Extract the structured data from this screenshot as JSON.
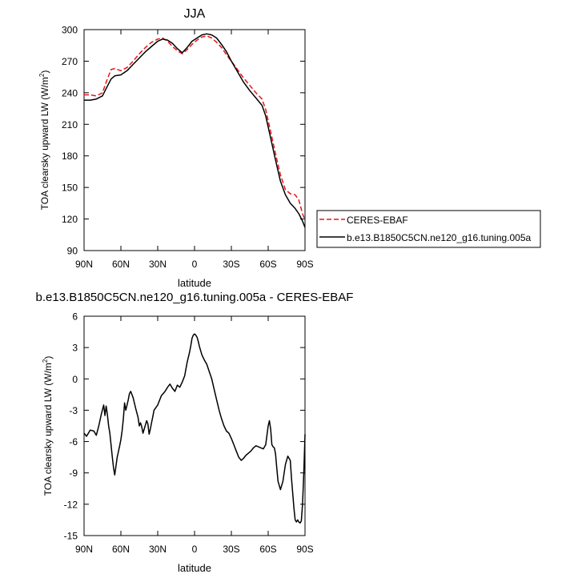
{
  "chart_data": [
    {
      "type": "line",
      "title": "JJA",
      "xlabel": "latitude",
      "ylabel": "TOA clearsky upward LW (W/m",
      "ylabel_superscript": "2",
      "ylabel_tail": ")",
      "xlim": [
        90,
        -90
      ],
      "ylim": [
        90,
        300
      ],
      "x_ticks": [
        90,
        60,
        30,
        0,
        -30,
        -60,
        -90
      ],
      "x_tick_labels": [
        "90N",
        "60N",
        "30N",
        "0",
        "30S",
        "60S",
        "90S"
      ],
      "y_ticks": [
        90,
        120,
        150,
        180,
        210,
        240,
        270,
        300
      ],
      "y_tick_labels": [
        "90",
        "120",
        "150",
        "180",
        "210",
        "240",
        "270",
        "300"
      ],
      "legend": "right, outside plot",
      "series": [
        {
          "name": "CERES-EBAF",
          "color": "#e8141b",
          "dash": "dashed",
          "x": [
            90,
            85,
            80,
            75,
            72,
            68,
            65,
            60,
            55,
            50,
            45,
            40,
            35,
            30,
            26,
            22,
            18,
            14,
            10,
            6,
            2,
            -2,
            -6,
            -10,
            -14,
            -18,
            -22,
            -26,
            -30,
            -35,
            -40,
            -45,
            -50,
            -55,
            -58,
            -62,
            -66,
            -70,
            -74,
            -78,
            -82,
            -85,
            -88,
            -90
          ],
          "y": [
            238,
            238,
            237,
            240,
            250,
            262,
            263,
            261,
            264,
            270,
            277,
            283,
            288,
            291,
            292,
            289,
            284,
            280,
            277,
            281,
            286,
            290,
            293,
            294,
            292,
            288,
            283,
            276,
            270,
            262,
            254,
            247,
            240,
            234,
            224,
            203,
            182,
            162,
            148,
            144,
            143,
            138,
            125,
            119
          ]
        },
        {
          "name": "b.e13.B1850C5CN.ne120_g16.tuning.005a",
          "color": "#000000",
          "dash": "solid",
          "x": [
            90,
            85,
            80,
            75,
            72,
            68,
            65,
            60,
            55,
            50,
            45,
            40,
            35,
            30,
            26,
            22,
            18,
            14,
            10,
            6,
            2,
            -2,
            -6,
            -10,
            -14,
            -18,
            -22,
            -26,
            -30,
            -35,
            -40,
            -45,
            -50,
            -55,
            -58,
            -62,
            -66,
            -70,
            -74,
            -78,
            -82,
            -85,
            -88,
            -90
          ],
          "y": [
            233,
            233,
            234,
            237,
            244,
            253,
            256,
            257,
            261,
            267,
            273,
            279,
            284,
            289,
            291,
            290,
            287,
            282,
            278,
            283,
            289,
            292,
            295,
            296,
            295,
            292,
            286,
            279,
            270,
            260,
            250,
            242,
            235,
            228,
            218,
            197,
            176,
            156,
            143,
            135,
            130,
            125,
            118,
            112
          ]
        }
      ]
    },
    {
      "type": "line",
      "title": "b.e13.B1850C5CN.ne120_g16.tuning.005a - CERES-EBAF",
      "xlabel": "latitude",
      "ylabel": "TOA clearsky upward LW (W/m",
      "ylabel_superscript": "2",
      "ylabel_tail": ")",
      "xlim": [
        90,
        -90
      ],
      "ylim": [
        -15,
        6
      ],
      "x_ticks": [
        90,
        60,
        30,
        0,
        -30,
        -60,
        -90
      ],
      "x_tick_labels": [
        "90N",
        "60N",
        "30N",
        "0",
        "30S",
        "60S",
        "90S"
      ],
      "y_ticks": [
        -15,
        -12,
        -9,
        -6,
        -3,
        0,
        3,
        6
      ],
      "y_tick_labels": [
        "-15",
        "-12",
        "-9",
        "-6",
        "-3",
        "0",
        "3",
        "6"
      ],
      "series": [
        {
          "color": "#000000",
          "dash": "solid",
          "x": [
            90,
            88,
            85,
            82,
            80,
            78,
            76,
            74,
            73,
            72,
            71,
            70,
            69,
            68,
            67,
            66,
            65,
            63,
            61,
            60,
            59,
            58,
            57,
            56,
            55,
            54,
            53,
            52,
            50,
            48,
            46,
            45,
            44,
            43,
            42,
            40,
            39,
            38,
            37,
            36,
            35,
            34,
            33,
            30,
            27,
            24,
            22,
            20,
            18,
            16,
            14,
            12,
            10,
            8,
            6,
            4,
            3,
            2,
            1,
            0,
            -1,
            -2,
            -3,
            -4,
            -6,
            -8,
            -10,
            -12,
            -14,
            -16,
            -18,
            -20,
            -22,
            -24,
            -26,
            -28,
            -30,
            -32,
            -34,
            -36,
            -38,
            -40,
            -42,
            -44,
            -46,
            -48,
            -50,
            -52,
            -54,
            -56,
            -58,
            -60,
            -61,
            -62,
            -63,
            -64,
            -65,
            -66,
            -67,
            -68,
            -70,
            -72,
            -74,
            -76,
            -78,
            -79,
            -80,
            -81,
            -82,
            -83,
            -84,
            -85,
            -86,
            -87,
            -88,
            -89,
            -90
          ],
          "y": [
            -5.2,
            -5.5,
            -4.9,
            -5.0,
            -5.4,
            -4.5,
            -3.4,
            -2.5,
            -3.5,
            -2.6,
            -3.4,
            -4.5,
            -5.2,
            -6.3,
            -7.5,
            -8.5,
            -9.2,
            -7.5,
            -6.4,
            -5.8,
            -5.0,
            -3.8,
            -2.3,
            -3.0,
            -2.5,
            -2.0,
            -1.4,
            -1.2,
            -1.8,
            -2.8,
            -3.7,
            -4.5,
            -4.2,
            -4.6,
            -5.2,
            -4.4,
            -4.0,
            -4.3,
            -5.3,
            -4.8,
            -4.2,
            -3.6,
            -3.0,
            -2.5,
            -1.6,
            -1.2,
            -0.8,
            -0.5,
            -0.9,
            -1.2,
            -0.6,
            -0.8,
            -0.3,
            0.3,
            1.6,
            2.6,
            3.2,
            3.9,
            4.2,
            4.3,
            4.2,
            4.0,
            3.6,
            3.1,
            2.3,
            1.8,
            1.4,
            0.7,
            0.0,
            -1.0,
            -2.0,
            -3.0,
            -3.8,
            -4.5,
            -5.0,
            -5.2,
            -5.7,
            -6.3,
            -6.9,
            -7.5,
            -7.8,
            -7.6,
            -7.3,
            -7.1,
            -6.9,
            -6.6,
            -6.4,
            -6.5,
            -6.6,
            -6.7,
            -6.3,
            -4.5,
            -4.0,
            -4.8,
            -6.3,
            -6.5,
            -6.6,
            -7.2,
            -8.5,
            -9.8,
            -10.6,
            -9.8,
            -8.2,
            -7.4,
            -7.8,
            -9.5,
            -11.0,
            -12.4,
            -13.5,
            -13.7,
            -13.5,
            -13.7,
            -13.8,
            -13.6,
            -12.0,
            -9.0,
            -5.3
          ]
        }
      ]
    }
  ]
}
